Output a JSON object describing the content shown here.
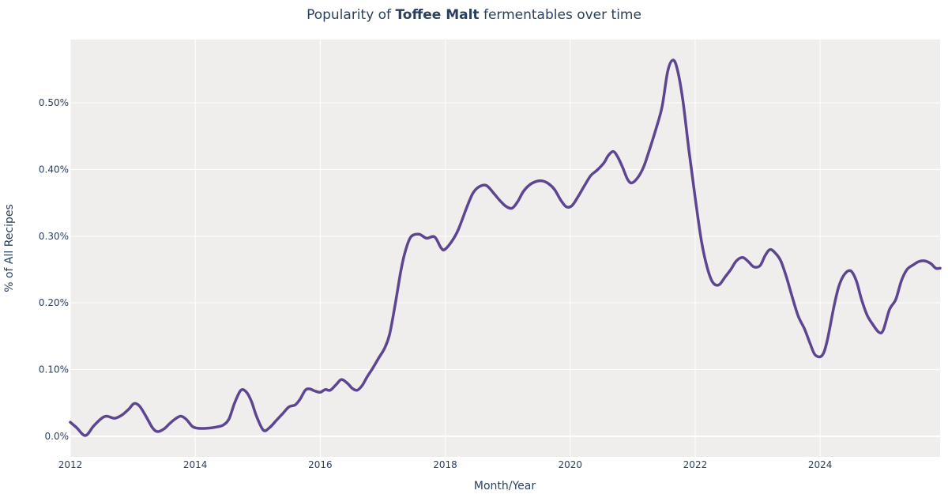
{
  "chart_data": {
    "type": "line",
    "title": {
      "prefix": "Popularity of ",
      "bold": "Toffee Malt",
      "suffix": " fermentables over time"
    },
    "xlabel": "Month/Year",
    "ylabel": "% of All Recipes",
    "xlim": [
      2012,
      2025.92
    ],
    "ylim": [
      -0.031,
      0.595
    ],
    "x_ticks": [
      2012,
      2014,
      2016,
      2018,
      2020,
      2022,
      2024
    ],
    "x_tick_labels": [
      "2012",
      "2014",
      "2016",
      "2018",
      "2020",
      "2022",
      "2024"
    ],
    "y_ticks": [
      0,
      0.1,
      0.2,
      0.3,
      0.4,
      0.5
    ],
    "y_tick_labels": [
      "0.0%",
      "0.10%",
      "0.20%",
      "0.30%",
      "0.40%",
      "0.50%"
    ],
    "grid": true,
    "colors": {
      "line": "#5e4591",
      "plot_bg": "#efeeed",
      "grid": "#ffffff",
      "text": "#2a3f5f"
    },
    "x": [
      2012.0,
      2012.1,
      2012.24,
      2012.37,
      2012.49,
      2012.58,
      2012.71,
      2012.83,
      2012.94,
      2013.02,
      2013.11,
      2013.21,
      2013.32,
      2013.4,
      2013.5,
      2013.59,
      2013.68,
      2013.77,
      2013.86,
      2013.95,
      2014.04,
      2014.19,
      2014.35,
      2014.45,
      2014.54,
      2014.63,
      2014.73,
      2014.82,
      2014.9,
      2014.98,
      2015.09,
      2015.19,
      2015.3,
      2015.4,
      2015.5,
      2015.6,
      2015.68,
      2015.76,
      2015.83,
      2015.91,
      2016.0,
      2016.08,
      2016.16,
      2016.25,
      2016.34,
      2016.44,
      2016.51,
      2016.59,
      2016.67,
      2016.75,
      2016.84,
      2016.94,
      2017.03,
      2017.11,
      2017.2,
      2017.29,
      2017.36,
      2017.45,
      2017.58,
      2017.7,
      2017.83,
      2017.93,
      2017.99,
      2018.11,
      2018.21,
      2018.34,
      2018.44,
      2018.54,
      2018.66,
      2018.78,
      2018.87,
      2018.97,
      2019.07,
      2019.16,
      2019.25,
      2019.35,
      2019.45,
      2019.55,
      2019.65,
      2019.75,
      2019.85,
      2019.94,
      2020.03,
      2020.13,
      2020.23,
      2020.33,
      2020.43,
      2020.54,
      2020.61,
      2020.69,
      2020.76,
      2020.84,
      2020.92,
      2020.99,
      2021.09,
      2021.18,
      2021.27,
      2021.37,
      2021.47,
      2021.56,
      2021.64,
      2021.71,
      2021.8,
      2021.9,
      2022.0,
      2022.1,
      2022.19,
      2022.28,
      2022.38,
      2022.48,
      2022.57,
      2022.66,
      2022.76,
      2022.85,
      2022.94,
      2023.04,
      2023.12,
      2023.2,
      2023.29,
      2023.37,
      2023.46,
      2023.55,
      2023.65,
      2023.75,
      2023.84,
      2023.92,
      2024.03,
      2024.11,
      2024.22,
      2024.3,
      2024.39,
      2024.49,
      2024.58,
      2024.66,
      2024.75,
      2024.84,
      2024.94,
      2025.01,
      2025.11,
      2025.21,
      2025.3,
      2025.39,
      2025.49,
      2025.58,
      2025.67,
      2025.77,
      2025.85,
      2025.92
    ],
    "y": [
      0.021,
      0.013,
      0.001,
      0.015,
      0.026,
      0.03,
      0.027,
      0.032,
      0.041,
      0.049,
      0.045,
      0.03,
      0.012,
      0.007,
      0.011,
      0.019,
      0.026,
      0.03,
      0.025,
      0.015,
      0.012,
      0.012,
      0.014,
      0.017,
      0.026,
      0.05,
      0.069,
      0.066,
      0.052,
      0.03,
      0.009,
      0.013,
      0.024,
      0.034,
      0.044,
      0.047,
      0.056,
      0.069,
      0.071,
      0.068,
      0.066,
      0.07,
      0.069,
      0.077,
      0.085,
      0.079,
      0.072,
      0.069,
      0.076,
      0.089,
      0.102,
      0.118,
      0.132,
      0.153,
      0.198,
      0.248,
      0.277,
      0.299,
      0.303,
      0.297,
      0.299,
      0.283,
      0.28,
      0.293,
      0.31,
      0.342,
      0.364,
      0.374,
      0.376,
      0.364,
      0.354,
      0.345,
      0.342,
      0.352,
      0.367,
      0.377,
      0.382,
      0.383,
      0.379,
      0.37,
      0.354,
      0.344,
      0.346,
      0.36,
      0.376,
      0.391,
      0.399,
      0.41,
      0.421,
      0.427,
      0.419,
      0.403,
      0.385,
      0.38,
      0.389,
      0.405,
      0.43,
      0.46,
      0.494,
      0.547,
      0.564,
      0.552,
      0.506,
      0.429,
      0.358,
      0.293,
      0.254,
      0.231,
      0.227,
      0.239,
      0.25,
      0.263,
      0.268,
      0.262,
      0.254,
      0.256,
      0.271,
      0.28,
      0.274,
      0.263,
      0.239,
      0.21,
      0.18,
      0.161,
      0.139,
      0.122,
      0.121,
      0.142,
      0.194,
      0.225,
      0.243,
      0.248,
      0.233,
      0.206,
      0.182,
      0.168,
      0.156,
      0.159,
      0.19,
      0.205,
      0.233,
      0.25,
      0.257,
      0.262,
      0.263,
      0.259,
      0.252,
      0.252
    ]
  }
}
